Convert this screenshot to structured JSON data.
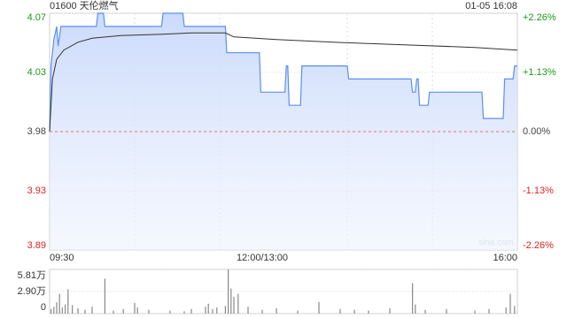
{
  "chart_data": [
    {
      "type": "line",
      "title": "01600 天伦燃气",
      "subtitle": "01-05 16:08",
      "watermark": "sina.com",
      "xlim": [
        0,
        330
      ],
      "xticks": [
        {
          "value": 0,
          "label": "09:30"
        },
        {
          "value": 150,
          "label": "12:00/13:00"
        },
        {
          "value": 330,
          "label": "16:00"
        }
      ],
      "xgrid": [
        60,
        120,
        210,
        270
      ],
      "ylim": [
        3.89,
        4.07
      ],
      "yticks": [
        {
          "value": 4.07,
          "label": "4.07"
        },
        {
          "value": 4.025,
          "label": "4.03"
        },
        {
          "value": 3.98,
          "label": "3.98"
        },
        {
          "value": 3.935,
          "label": "3.93"
        },
        {
          "value": 3.89,
          "label": "3.89"
        }
      ],
      "y2lim": [
        -2.26,
        2.26
      ],
      "y2ticks": [
        {
          "value": 2.26,
          "label": "+2.26%"
        },
        {
          "value": 1.13,
          "label": "+1.13%"
        },
        {
          "value": 0,
          "label": "0.00%"
        },
        {
          "value": -1.13,
          "label": "-1.13%"
        },
        {
          "value": -2.26,
          "label": "-2.26%"
        }
      ],
      "baseline": 3.98,
      "up_color": "#1a9a1a",
      "down_color": "#d22",
      "flat_color": "#444",
      "grid": true,
      "series": [
        {
          "color": "#5b8ff0",
          "fill": true,
          "x": [
            0,
            1,
            3,
            5,
            6,
            8,
            13,
            33,
            34,
            38,
            39,
            79,
            80,
            94,
            95,
            124,
            125,
            148,
            149,
            166,
            167,
            168,
            169,
            177,
            178,
            210,
            211,
            255,
            256,
            258,
            259,
            260,
            261,
            267,
            268,
            305,
            306,
            320,
            321,
            327,
            328,
            330
          ],
          "values": [
            3.98,
            4.03,
            4.05,
            4.06,
            4.045,
            4.06,
            4.06,
            4.06,
            4.07,
            4.07,
            4.06,
            4.06,
            4.07,
            4.07,
            4.06,
            4.06,
            4.04,
            4.04,
            4.01,
            4.01,
            4.03,
            4.03,
            4.0,
            4.0,
            4.03,
            4.03,
            4.02,
            4.02,
            4.01,
            4.01,
            4.02,
            4.02,
            4.0,
            4.0,
            4.01,
            4.01,
            3.99,
            3.99,
            4.02,
            4.02,
            4.03,
            4.03
          ]
        },
        {
          "color": "#333333",
          "fill": false,
          "x": [
            0,
            2,
            5,
            10,
            20,
            30,
            50,
            80,
            100,
            124,
            130,
            160,
            200,
            250,
            300,
            330
          ],
          "values": [
            3.98,
            4.02,
            4.035,
            4.042,
            4.048,
            4.051,
            4.053,
            4.054,
            4.055,
            4.055,
            4.052,
            4.05,
            4.048,
            4.046,
            4.044,
            4.042
          ]
        }
      ]
    },
    {
      "type": "bar",
      "xlim": [
        0,
        330
      ],
      "color": "#888888",
      "ylim": [
        0,
        5.81
      ],
      "yticks": [
        {
          "value": 5.81,
          "label": "5.81万"
        },
        {
          "value": 2.9,
          "label": "2.90万"
        },
        0
      ],
      "x": [
        1,
        3,
        5,
        7,
        9,
        11,
        13,
        16,
        20,
        25,
        30,
        39,
        45,
        52,
        60,
        62,
        70,
        85,
        95,
        100,
        110,
        112,
        115,
        118,
        124,
        126,
        128,
        130,
        133,
        140,
        150,
        160,
        175,
        190,
        205,
        215,
        225,
        240,
        256,
        258,
        265,
        280,
        300,
        310,
        322,
        325,
        328
      ],
      "values": [
        0.6,
        0.9,
        1.5,
        2.6,
        0.8,
        1.2,
        3.2,
        1.1,
        0.7,
        0.5,
        0.9,
        4.6,
        0.4,
        0.6,
        1.4,
        0.8,
        0.5,
        0.4,
        0.3,
        0.6,
        0.9,
        1.3,
        0.6,
        0.8,
        1.0,
        5.81,
        3.3,
        2.2,
        2.6,
        0.9,
        0.5,
        0.7,
        0.4,
        1.5,
        0.6,
        0.5,
        0.4,
        0.7,
        4.0,
        1.2,
        0.5,
        0.6,
        0.4,
        0.6,
        0.8,
        2.6,
        1.0
      ]
    }
  ]
}
